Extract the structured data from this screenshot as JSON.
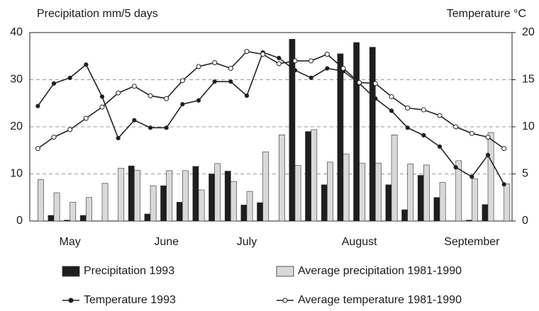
{
  "chart_data": {
    "type": "bar",
    "ylabel": "Precipitation mm/5 days",
    "y2label": "Temperature °C",
    "categories": [
      null,
      null,
      "May",
      null,
      null,
      null,
      null,
      null,
      "June",
      null,
      null,
      null,
      null,
      "July",
      null,
      null,
      null,
      null,
      null,
      null,
      "August",
      null,
      null,
      null,
      null,
      null,
      null,
      "September",
      null,
      null
    ],
    "ylim": [
      0,
      40
    ],
    "yticks": [
      0,
      10,
      20,
      30,
      40
    ],
    "y2lim": [
      0,
      20
    ],
    "y2ticks": [
      0,
      5,
      10,
      15,
      20
    ],
    "grid": true,
    "legend": "bottom",
    "series": [
      {
        "name": "Precipitation 1993",
        "type": "bar",
        "color": "#1e1e1e",
        "values": [
          0,
          1.2,
          0.2,
          1.2,
          0,
          0,
          11.7,
          1.5,
          7.5,
          4.0,
          11.6,
          10.0,
          10.6,
          3.4,
          3.9,
          0,
          38.6,
          19.0,
          7.7,
          35.5,
          37.9,
          36.9,
          7.7,
          2.4,
          9.7,
          5.0,
          0,
          0.2,
          3.5,
          0
        ]
      },
      {
        "name": "Average precipitation 1981-1990",
        "type": "bar",
        "color": "#d9d9d9",
        "values": [
          8.8,
          6.0,
          4.0,
          5.0,
          8.0,
          11.2,
          10.8,
          7.5,
          10.7,
          10.7,
          6.6,
          12.2,
          8.4,
          6.3,
          14.7,
          18.3,
          11.8,
          19.4,
          12.5,
          14.2,
          12.3,
          12.3,
          18.3,
          12.1,
          11.9,
          8.2,
          12.8,
          9.0,
          18.8,
          7.9
        ]
      },
      {
        "name": "Temperature 1993",
        "type": "line",
        "axis": "y2",
        "color": "#1e1e1e",
        "values": [
          12.2,
          14.6,
          15.2,
          16.6,
          13.2,
          8.8,
          10.7,
          9.9,
          9.9,
          12.4,
          12.8,
          14.8,
          14.8,
          13.3,
          17.9,
          17.3,
          16.0,
          15.2,
          16.2,
          15.9,
          14.6,
          13.0,
          11.7,
          9.9,
          9.1,
          7.9,
          5.7,
          4.7,
          7.0,
          3.9
        ]
      },
      {
        "name": "Average temperature 1981-1990",
        "type": "line",
        "axis": "y2",
        "color": "#ffffff",
        "values": [
          7.7,
          8.9,
          9.7,
          10.9,
          12.1,
          13.6,
          14.3,
          13.3,
          13.0,
          14.9,
          16.4,
          16.8,
          16.2,
          18.0,
          17.7,
          16.7,
          17.0,
          17.0,
          17.7,
          16.2,
          14.7,
          14.6,
          13.2,
          12.0,
          11.8,
          11.2,
          10.0,
          9.3,
          8.9,
          7.7
        ]
      }
    ]
  }
}
